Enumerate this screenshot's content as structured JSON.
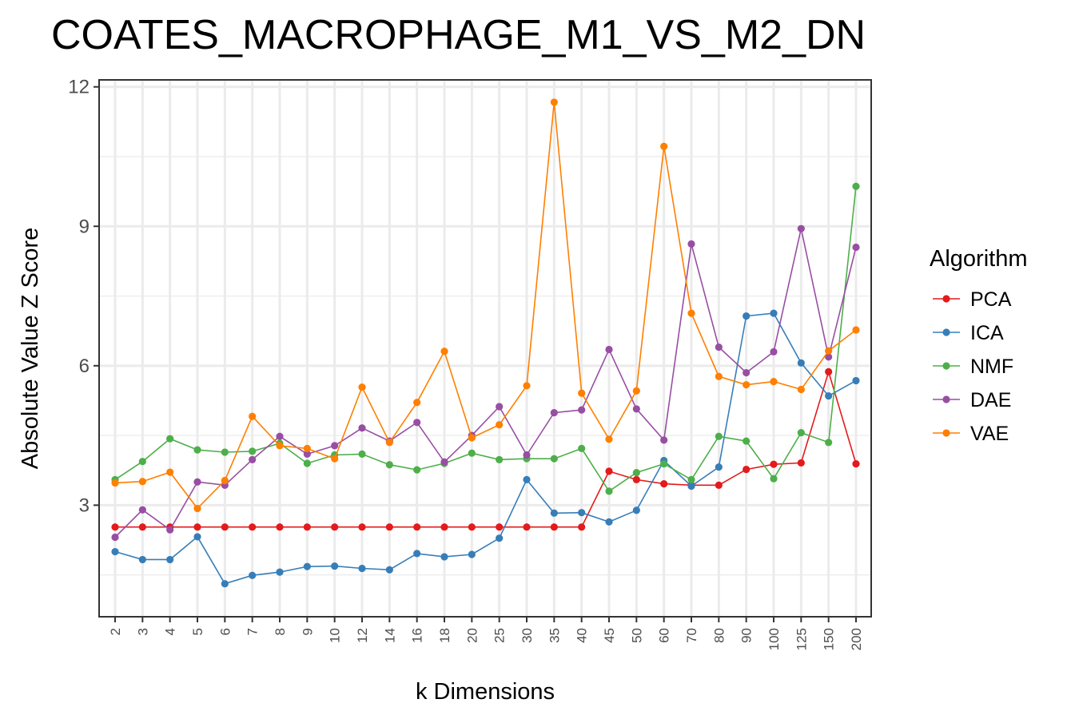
{
  "chart_data": {
    "type": "line",
    "title": "COATES_MACROPHAGE_M1_VS_M2_DN",
    "xlabel": "k Dimensions",
    "ylabel": "Absolute Value Z Score",
    "categories": [
      "2",
      "3",
      "4",
      "5",
      "6",
      "7",
      "8",
      "9",
      "10",
      "12",
      "14",
      "16",
      "18",
      "20",
      "25",
      "30",
      "35",
      "40",
      "45",
      "50",
      "60",
      "70",
      "80",
      "90",
      "100",
      "125",
      "150",
      "200"
    ],
    "yticks": [
      3,
      6,
      9,
      12
    ],
    "ylim": [
      0.6,
      12.15
    ],
    "grid": true,
    "legend": {
      "title": "Algorithm",
      "position": "right"
    },
    "series": [
      {
        "name": "PCA",
        "color": "#e41a1c",
        "values": [
          2.53,
          2.53,
          2.53,
          2.53,
          2.53,
          2.53,
          2.53,
          2.53,
          2.53,
          2.53,
          2.53,
          2.53,
          2.53,
          2.53,
          2.53,
          2.53,
          2.53,
          2.53,
          3.73,
          3.55,
          3.46,
          3.43,
          3.43,
          3.77,
          3.88,
          3.91,
          5.87,
          3.89
        ]
      },
      {
        "name": "ICA",
        "color": "#377eb8",
        "values": [
          2.0,
          1.83,
          1.83,
          2.32,
          1.31,
          1.49,
          1.56,
          1.68,
          1.69,
          1.64,
          1.61,
          1.96,
          1.89,
          1.94,
          2.29,
          3.55,
          2.83,
          2.84,
          2.64,
          2.89,
          3.96,
          3.41,
          3.82,
          7.07,
          7.13,
          6.06,
          5.35,
          5.68
        ]
      },
      {
        "name": "NMF",
        "color": "#4daf4a",
        "values": [
          3.55,
          3.94,
          4.43,
          4.19,
          4.14,
          4.16,
          4.33,
          3.9,
          4.08,
          4.1,
          3.87,
          3.76,
          3.9,
          4.12,
          3.98,
          4.0,
          4.0,
          4.22,
          3.3,
          3.7,
          3.89,
          3.55,
          4.48,
          4.38,
          3.57,
          4.56,
          4.35,
          9.86
        ]
      },
      {
        "name": "DAE",
        "color": "#984ea3",
        "values": [
          2.31,
          2.9,
          2.47,
          3.5,
          3.43,
          3.98,
          4.48,
          4.1,
          4.28,
          4.66,
          4.38,
          4.78,
          3.93,
          4.5,
          5.12,
          4.08,
          4.99,
          5.05,
          6.35,
          5.07,
          4.4,
          8.62,
          6.4,
          5.85,
          6.3,
          8.95,
          6.19,
          8.55
        ]
      },
      {
        "name": "VAE",
        "color": "#ff7f00",
        "values": [
          3.48,
          3.51,
          3.71,
          2.93,
          3.53,
          4.91,
          4.28,
          4.22,
          4.0,
          5.54,
          4.35,
          5.21,
          6.31,
          4.45,
          4.73,
          5.57,
          11.67,
          5.41,
          4.42,
          5.46,
          10.72,
          7.13,
          5.77,
          5.59,
          5.66,
          5.49,
          6.32,
          6.77
        ]
      }
    ]
  }
}
